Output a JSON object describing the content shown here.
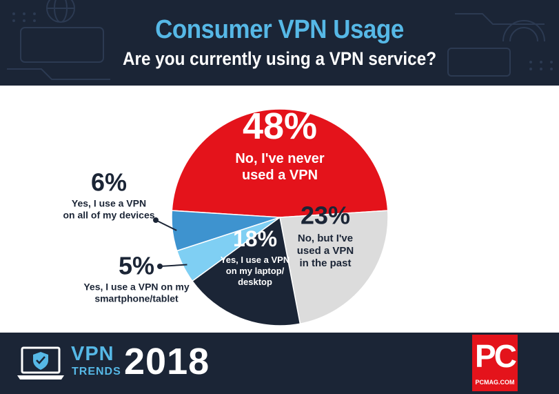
{
  "header": {
    "title": "Consumer VPN Usage",
    "subtitle": "Are you currently using a VPN service?"
  },
  "chart_data": {
    "type": "pie",
    "slices": [
      {
        "value": 48,
        "pct_label": "48%",
        "lines": [
          "No, I've never",
          "used a VPN"
        ],
        "color": "#e4131b",
        "label_color": "#ffffff"
      },
      {
        "value": 23,
        "pct_label": "23%",
        "lines": [
          "No, but I've",
          "used a VPN",
          "in the past"
        ],
        "color": "#dcdcdc",
        "label_color": "#1b2536"
      },
      {
        "value": 18,
        "pct_label": "18%",
        "lines": [
          "Yes, I use a VPN",
          "on my laptop/",
          "desktop"
        ],
        "color": "#1b2536",
        "label_color": "#ffffff"
      },
      {
        "value": 5,
        "pct_label": "5%",
        "lines": [
          "Yes, I use a VPN on my",
          "smartphone/tablet"
        ],
        "color": "#7fcff3",
        "label_color": "#1b2536"
      },
      {
        "value": 6,
        "pct_label": "6%",
        "lines": [
          "Yes, I use a VPN",
          "on all of my devices"
        ],
        "color": "#3e93cf",
        "label_color": "#1b2536"
      }
    ]
  },
  "footer": {
    "brand_vpn": "VPN",
    "brand_trends": "TRENDS",
    "year": "2018",
    "logo_text": "PC",
    "logo_url": "PCMAG.COM"
  },
  "colors": {
    "navy": "#1b2536",
    "accent_blue": "#56b8e6",
    "red": "#e4131b"
  }
}
